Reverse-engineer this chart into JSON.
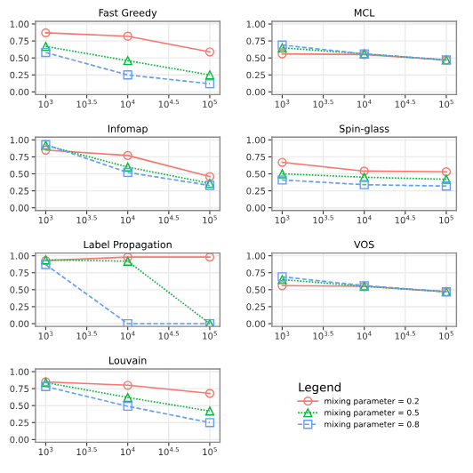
{
  "chart_data": [
    {
      "type": "line",
      "title": "Fast Greedy",
      "x": [
        1000,
        10000,
        100000
      ],
      "log": "x",
      "xlim": [
        750,
        133000
      ],
      "ylim": [
        -0.04,
        1.04
      ],
      "xticks": [
        {
          "value": 1000,
          "label": "10$^{3}$"
        },
        {
          "value": 3162.3,
          "label": "10$^{3.5}$"
        },
        {
          "value": 10000,
          "label": "10$^{4}$"
        },
        {
          "value": 31622.8,
          "label": "10$^{4.5}$"
        },
        {
          "value": 100000,
          "label": "10$^{5}$"
        }
      ],
      "yticks": [
        {
          "value": 0,
          "label": "0.00"
        },
        {
          "value": 0.25,
          "label": "0.25"
        },
        {
          "value": 0.5,
          "label": "0.50"
        },
        {
          "value": 0.75,
          "label": "0.75"
        },
        {
          "value": 1,
          "label": "1.00"
        }
      ],
      "grid": true,
      "series": [
        {
          "color": "#f8766d",
          "marker": "circle",
          "line_style": "solid",
          "values": [
            0.87,
            0.82,
            0.59
          ]
        },
        {
          "color": "#00ba38",
          "marker": "triangle",
          "line_style": "dotted",
          "values": [
            0.67,
            0.46,
            0.25
          ]
        },
        {
          "color": "#619cff",
          "marker": "square",
          "line_style": "dashed",
          "values": [
            0.58,
            0.25,
            0.12
          ]
        }
      ]
    },
    {
      "type": "line",
      "title": "MCL",
      "x": [
        1000,
        10000,
        100000
      ],
      "log": "x",
      "xlim": [
        750,
        133000
      ],
      "ylim": [
        -0.04,
        1.04
      ],
      "xticks": [
        {
          "value": 1000,
          "label": "10$^{3}$"
        },
        {
          "value": 3162.3,
          "label": "10$^{3.5}$"
        },
        {
          "value": 10000,
          "label": "10$^{4}$"
        },
        {
          "value": 31622.8,
          "label": "10$^{4.5}$"
        },
        {
          "value": 100000,
          "label": "10$^{5}$"
        }
      ],
      "yticks": [
        {
          "value": 0,
          "label": "0.00"
        },
        {
          "value": 0.25,
          "label": "0.25"
        },
        {
          "value": 0.5,
          "label": "0.50"
        },
        {
          "value": 0.75,
          "label": "0.75"
        },
        {
          "value": 1,
          "label": "1.00"
        }
      ],
      "grid": true,
      "series": [
        {
          "color": "#f8766d",
          "marker": "circle",
          "line_style": "solid",
          "values": [
            0.56,
            0.55,
            0.47
          ]
        },
        {
          "color": "#00ba38",
          "marker": "triangle",
          "line_style": "dotted",
          "values": [
            0.65,
            0.56,
            0.47
          ]
        },
        {
          "color": "#619cff",
          "marker": "square",
          "line_style": "dashed",
          "values": [
            0.69,
            0.56,
            0.47
          ]
        }
      ]
    },
    {
      "type": "line",
      "title": "Infomap",
      "x": [
        1000,
        10000,
        100000
      ],
      "log": "x",
      "xlim": [
        750,
        133000
      ],
      "ylim": [
        -0.04,
        1.04
      ],
      "xticks": [
        {
          "value": 1000,
          "label": "10$^{3}$"
        },
        {
          "value": 3162.3,
          "label": "10$^{3.5}$"
        },
        {
          "value": 10000,
          "label": "10$^{4}$"
        },
        {
          "value": 31622.8,
          "label": "10$^{4.5}$"
        },
        {
          "value": 100000,
          "label": "10$^{5}$"
        }
      ],
      "yticks": [
        {
          "value": 0,
          "label": "0.00"
        },
        {
          "value": 0.25,
          "label": "0.25"
        },
        {
          "value": 0.5,
          "label": "0.50"
        },
        {
          "value": 0.75,
          "label": "0.75"
        },
        {
          "value": 1,
          "label": "1.00"
        }
      ],
      "grid": true,
      "series": [
        {
          "color": "#f8766d",
          "marker": "circle",
          "line_style": "solid",
          "values": [
            0.85,
            0.77,
            0.46
          ]
        },
        {
          "color": "#00ba38",
          "marker": "triangle",
          "line_style": "dotted",
          "values": [
            0.92,
            0.6,
            0.36
          ]
        },
        {
          "color": "#619cff",
          "marker": "square",
          "line_style": "dashed",
          "values": [
            0.93,
            0.52,
            0.33
          ]
        }
      ]
    },
    {
      "type": "line",
      "title": "Spin-glass",
      "x": [
        1000,
        10000,
        100000
      ],
      "log": "x",
      "xlim": [
        750,
        133000
      ],
      "ylim": [
        -0.04,
        1.04
      ],
      "xticks": [
        {
          "value": 1000,
          "label": "10$^{3}$"
        },
        {
          "value": 3162.3,
          "label": "10$^{3.5}$"
        },
        {
          "value": 10000,
          "label": "10$^{4}$"
        },
        {
          "value": 31622.8,
          "label": "10$^{4.5}$"
        },
        {
          "value": 100000,
          "label": "10$^{5}$"
        }
      ],
      "yticks": [
        {
          "value": 0,
          "label": "0.00"
        },
        {
          "value": 0.25,
          "label": "0.25"
        },
        {
          "value": 0.5,
          "label": "0.50"
        },
        {
          "value": 0.75,
          "label": "0.75"
        },
        {
          "value": 1,
          "label": "1.00"
        }
      ],
      "grid": true,
      "series": [
        {
          "color": "#f8766d",
          "marker": "circle",
          "line_style": "solid",
          "values": [
            0.67,
            0.54,
            0.53
          ]
        },
        {
          "color": "#00ba38",
          "marker": "triangle",
          "line_style": "dotted",
          "values": [
            0.5,
            0.45,
            0.42
          ]
        },
        {
          "color": "#619cff",
          "marker": "square",
          "line_style": "dashed",
          "values": [
            0.41,
            0.34,
            0.32
          ]
        }
      ]
    },
    {
      "type": "line",
      "title": "Label Propagation",
      "x": [
        1000,
        10000,
        100000
      ],
      "log": "x",
      "xlim": [
        750,
        133000
      ],
      "ylim": [
        -0.04,
        1.04
      ],
      "xticks": [
        {
          "value": 1000,
          "label": "10$^{3}$"
        },
        {
          "value": 3162.3,
          "label": "10$^{3.5}$"
        },
        {
          "value": 10000,
          "label": "10$^{4}$"
        },
        {
          "value": 31622.8,
          "label": "10$^{4.5}$"
        },
        {
          "value": 100000,
          "label": "10$^{5}$"
        }
      ],
      "yticks": [
        {
          "value": 0,
          "label": "0.00"
        },
        {
          "value": 0.25,
          "label": "0.25"
        },
        {
          "value": 0.5,
          "label": "0.50"
        },
        {
          "value": 0.75,
          "label": "0.75"
        },
        {
          "value": 1,
          "label": "1.00"
        }
      ],
      "grid": true,
      "series": [
        {
          "color": "#f8766d",
          "marker": "circle",
          "line_style": "solid",
          "values": [
            0.93,
            0.98,
            0.98
          ]
        },
        {
          "color": "#00ba38",
          "marker": "triangle",
          "line_style": "dotted",
          "values": [
            0.94,
            0.92,
            0.0
          ]
        },
        {
          "color": "#619cff",
          "marker": "square",
          "line_style": "dashed",
          "values": [
            0.87,
            0.0,
            0.0
          ]
        }
      ]
    },
    {
      "type": "line",
      "title": "VOS",
      "x": [
        1000,
        10000,
        100000
      ],
      "log": "x",
      "xlim": [
        750,
        133000
      ],
      "ylim": [
        -0.04,
        1.04
      ],
      "xticks": [
        {
          "value": 1000,
          "label": "10$^{3}$"
        },
        {
          "value": 3162.3,
          "label": "10$^{3.5}$"
        },
        {
          "value": 10000,
          "label": "10$^{4}$"
        },
        {
          "value": 31622.8,
          "label": "10$^{4.5}$"
        },
        {
          "value": 100000,
          "label": "10$^{5}$"
        }
      ],
      "yticks": [
        {
          "value": 0,
          "label": "0.00"
        },
        {
          "value": 0.25,
          "label": "0.25"
        },
        {
          "value": 0.5,
          "label": "0.50"
        },
        {
          "value": 0.75,
          "label": "0.75"
        },
        {
          "value": 1,
          "label": "1.00"
        }
      ],
      "grid": true,
      "series": [
        {
          "color": "#f8766d",
          "marker": "circle",
          "line_style": "solid",
          "values": [
            0.56,
            0.55,
            0.47
          ]
        },
        {
          "color": "#00ba38",
          "marker": "triangle",
          "line_style": "dotted",
          "values": [
            0.65,
            0.55,
            0.47
          ]
        },
        {
          "color": "#619cff",
          "marker": "square",
          "line_style": "dashed",
          "values": [
            0.69,
            0.56,
            0.47
          ]
        }
      ]
    },
    {
      "type": "line",
      "title": "Louvain",
      "x": [
        1000,
        10000,
        100000
      ],
      "log": "x",
      "xlim": [
        750,
        133000
      ],
      "ylim": [
        -0.04,
        1.04
      ],
      "xticks": [
        {
          "value": 1000,
          "label": "10$^{3}$"
        },
        {
          "value": 3162.3,
          "label": "10$^{3.5}$"
        },
        {
          "value": 10000,
          "label": "10$^{4}$"
        },
        {
          "value": 31622.8,
          "label": "10$^{4.5}$"
        },
        {
          "value": 100000,
          "label": "10$^{5}$"
        }
      ],
      "yticks": [
        {
          "value": 0,
          "label": "0.00"
        },
        {
          "value": 0.25,
          "label": "0.25"
        },
        {
          "value": 0.5,
          "label": "0.50"
        },
        {
          "value": 0.75,
          "label": "0.75"
        },
        {
          "value": 1,
          "label": "1.00"
        }
      ],
      "grid": true,
      "legend": "right",
      "legend_title": "Legend",
      "series": [
        {
          "name": "mixing parameter = 0.2",
          "color": "#f8766d",
          "marker": "circle",
          "line_style": "solid",
          "values": [
            0.85,
            0.8,
            0.68
          ]
        },
        {
          "name": "mixing parameter = 0.5",
          "color": "#00ba38",
          "marker": "triangle",
          "line_style": "dotted",
          "values": [
            0.84,
            0.62,
            0.42
          ]
        },
        {
          "name": "mixing parameter = 0.8",
          "color": "#619cff",
          "marker": "square",
          "line_style": "dashed",
          "values": [
            0.78,
            0.49,
            0.25
          ]
        }
      ]
    }
  ]
}
